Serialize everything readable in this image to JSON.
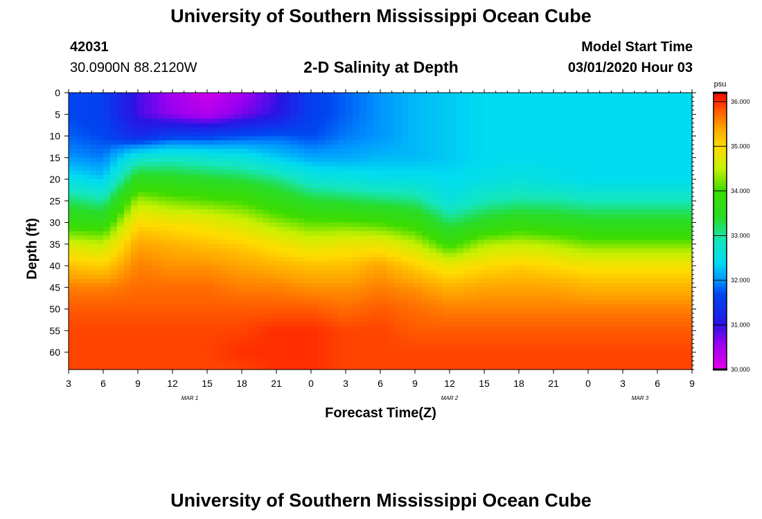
{
  "header": {
    "title": "University of Southern Mississippi Ocean Cube",
    "station_id": "42031",
    "coords": "30.0900N 88.2120W",
    "plot_title": "2-D Salinity at Depth",
    "model_label": "Model Start Time",
    "model_time": "03/01/2020 Hour 03"
  },
  "footer": {
    "title": "University of Southern Mississippi Ocean Cube"
  },
  "chart_data": {
    "type": "heatmap",
    "title": "2-D Salinity at Depth",
    "xlabel": "Forecast Time(Z)",
    "ylabel": "Depth (ft)",
    "x_tick_labels": [
      "3",
      "6",
      "9",
      "12",
      "15",
      "18",
      "21",
      "0",
      "3",
      "6",
      "9",
      "12",
      "15",
      "18",
      "21",
      "0",
      "3",
      "6",
      "9"
    ],
    "x_hours": [
      0,
      3,
      6,
      9,
      12,
      15,
      18,
      21,
      24,
      27,
      30,
      33,
      36,
      39,
      42,
      45,
      48,
      51,
      54
    ],
    "date_labels": [
      {
        "label": "MAR 1",
        "hour": 10.5
      },
      {
        "label": "MAR 2",
        "hour": 33
      },
      {
        "label": "MAR 3",
        "hour": 49.5
      }
    ],
    "y_tick_labels": [
      "0",
      "5",
      "10",
      "15",
      "20",
      "25",
      "30",
      "35",
      "40",
      "45",
      "50",
      "55",
      "60"
    ],
    "y_ticks": [
      0,
      5,
      10,
      15,
      20,
      25,
      30,
      35,
      40,
      45,
      50,
      55,
      60
    ],
    "ylim": [
      0,
      64
    ],
    "xlim": [
      0,
      54
    ],
    "colorbar": {
      "unit": "psu",
      "min": 30.0,
      "max": 36.2,
      "tick_labels": [
        "36.000",
        "35.000",
        "34.000",
        "33.000",
        "32.000",
        "31.000",
        "30.000"
      ],
      "ticks": [
        36,
        35,
        34,
        33,
        32,
        31,
        30
      ]
    },
    "sample_hours": [
      0,
      3,
      6,
      9,
      12,
      15,
      18,
      21,
      24,
      27,
      30,
      33,
      36,
      39,
      42,
      45,
      48,
      51,
      54
    ],
    "sample_depths": [
      0,
      5,
      10,
      15,
      20,
      25,
      30,
      35,
      40,
      45,
      50,
      55,
      60,
      64
    ],
    "salinity": [
      [
        31.7,
        31.7,
        31.8,
        32.0,
        32.5,
        33.2,
        33.8,
        34.6,
        35.2,
        35.6,
        35.8,
        35.9,
        35.9,
        35.9
      ],
      [
        31.6,
        31.6,
        31.7,
        31.9,
        32.3,
        33.0,
        33.7,
        34.5,
        35.1,
        35.6,
        35.8,
        35.9,
        35.9,
        35.9
      ],
      [
        30.9,
        30.9,
        31.3,
        32.7,
        33.6,
        34.4,
        35.0,
        35.4,
        35.6,
        35.7,
        35.8,
        35.9,
        35.9,
        35.9
      ],
      [
        30.5,
        30.6,
        31.6,
        32.8,
        33.5,
        34.2,
        34.9,
        35.3,
        35.5,
        35.7,
        35.8,
        35.9,
        35.9,
        35.9
      ],
      [
        30.2,
        30.4,
        31.6,
        32.7,
        33.4,
        34.1,
        34.8,
        35.2,
        35.5,
        35.7,
        35.8,
        35.9,
        35.9,
        35.9
      ],
      [
        30.5,
        30.7,
        31.7,
        32.6,
        33.3,
        34.0,
        34.6,
        35.1,
        35.4,
        35.6,
        35.8,
        35.9,
        36.0,
        35.9
      ],
      [
        30.9,
        31.0,
        31.8,
        32.3,
        33.1,
        33.7,
        34.3,
        34.9,
        35.3,
        35.6,
        35.8,
        36.0,
        36.0,
        36.0
      ],
      [
        31.6,
        31.6,
        31.7,
        32.1,
        32.7,
        33.4,
        34.1,
        34.7,
        35.2,
        35.5,
        35.8,
        36.0,
        36.0,
        36.0
      ],
      [
        31.8,
        31.8,
        31.9,
        32.1,
        32.6,
        33.3,
        34.1,
        34.8,
        35.2,
        35.5,
        35.7,
        35.9,
        35.9,
        35.9
      ],
      [
        32.0,
        32.0,
        32.0,
        32.2,
        32.5,
        33.2,
        34.0,
        34.8,
        35.4,
        35.6,
        35.8,
        35.9,
        35.9,
        35.9
      ],
      [
        32.2,
        32.2,
        32.2,
        32.2,
        32.5,
        33.1,
        33.8,
        34.5,
        35.1,
        35.5,
        35.7,
        35.8,
        35.9,
        35.9
      ],
      [
        32.3,
        32.3,
        32.3,
        32.3,
        32.4,
        32.6,
        33.2,
        33.9,
        34.8,
        35.3,
        35.6,
        35.8,
        35.9,
        35.9
      ],
      [
        32.4,
        32.4,
        32.4,
        32.4,
        32.5,
        32.9,
        33.5,
        34.4,
        35.0,
        35.4,
        35.6,
        35.8,
        35.9,
        35.9
      ],
      [
        32.4,
        32.4,
        32.4,
        32.4,
        32.6,
        33.0,
        33.7,
        34.5,
        35.1,
        35.4,
        35.6,
        35.8,
        35.9,
        35.9
      ],
      [
        32.4,
        32.4,
        32.4,
        32.4,
        32.5,
        33.0,
        33.6,
        34.4,
        35.0,
        35.4,
        35.6,
        35.8,
        35.9,
        35.9
      ],
      [
        32.4,
        32.4,
        32.4,
        32.4,
        32.4,
        32.9,
        33.5,
        34.2,
        34.9,
        35.3,
        35.6,
        35.8,
        35.9,
        35.9
      ],
      [
        32.4,
        32.4,
        32.4,
        32.4,
        32.4,
        32.9,
        33.5,
        34.2,
        34.9,
        35.3,
        35.6,
        35.8,
        35.9,
        35.9
      ],
      [
        32.4,
        32.4,
        32.4,
        32.4,
        32.4,
        32.9,
        33.5,
        34.2,
        34.9,
        35.3,
        35.6,
        35.8,
        35.9,
        35.9
      ],
      [
        32.4,
        32.4,
        32.4,
        32.4,
        32.4,
        32.9,
        33.5,
        34.2,
        34.9,
        35.3,
        35.6,
        35.8,
        35.9,
        35.9
      ]
    ]
  }
}
